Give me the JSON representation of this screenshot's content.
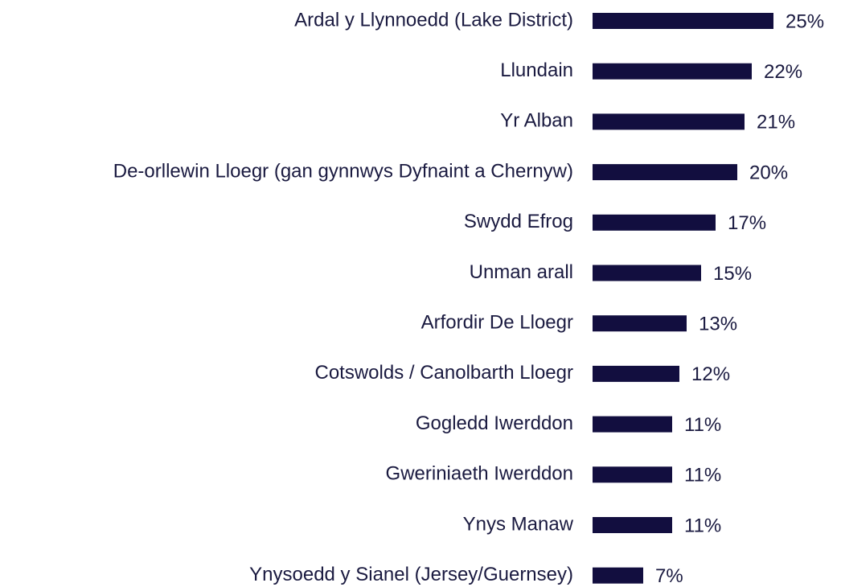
{
  "chart_data": {
    "type": "bar",
    "orientation": "horizontal",
    "categories": [
      "Ardal y Llynnoedd (Lake District)",
      "Llundain",
      "Yr Alban",
      "De-orllewin Lloegr (gan gynnwys Dyfnaint a Chernyw)",
      "Swydd Efrog",
      "Unman arall",
      "Arfordir De Lloegr",
      "Cotswolds / Canolbarth Lloegr",
      "Gogledd Iwerddon",
      "Gweriniaeth Iwerddon",
      "Ynys Manaw",
      "Ynysoedd y Sianel (Jersey/Guernsey)"
    ],
    "values": [
      25,
      22,
      21,
      20,
      17,
      15,
      13,
      12,
      11,
      11,
      11,
      7
    ],
    "value_labels": [
      "25%",
      "22%",
      "21%",
      "20%",
      "17%",
      "15%",
      "13%",
      "12%",
      "11%",
      "11%",
      "11%",
      "7%"
    ],
    "color": "#120e3f"
  }
}
